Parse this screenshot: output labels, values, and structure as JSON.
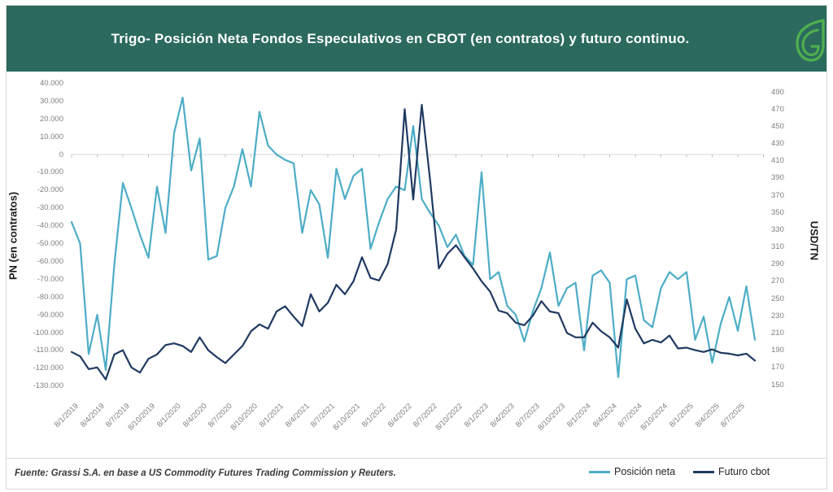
{
  "header": {
    "title": "Trigo- Posición Neta Fondos Especulativos en CBOT (en contratos) y futuro continuo.",
    "background_color": "#2b6a5d",
    "logo_icon": "leaf-g-icon",
    "logo_color": "#4fae50"
  },
  "footer": {
    "source": "Fuente: Grassi S.A. en base a US Commodity  Futures Trading Commission y Reuters."
  },
  "legend": [
    {
      "label": "Posición neta",
      "color": "#4dadc6"
    },
    {
      "label": "Futuro cbot",
      "color": "#203a61"
    }
  ],
  "chart_data": {
    "type": "line",
    "title": "Trigo- Posición Neta Fondos Especulativos en CBOT (en contratos) y futuro continuo.",
    "frequency": "monthly",
    "start_month": "2019-01",
    "end_month": "2025-09",
    "grid": "single horizontal line at left-axis 0 with quarterly tick marks",
    "legend_position": "bottom-right",
    "x_tick_labels": [
      "8/1/2019",
      "8/4/2019",
      "8/7/2019",
      "8/10/2019",
      "8/1/2020",
      "8/4/2020",
      "8/7/2020",
      "8/10/2020",
      "8/1/2021",
      "8/4/2021",
      "8/7/2021",
      "8/10/2021",
      "8/1/2022",
      "8/4/2022",
      "8/7/2022",
      "8/10/2022",
      "8/1/2023",
      "8/4/2023",
      "8/7/2023",
      "8/10/2023",
      "8/1/2024",
      "8/4/2024",
      "8/7/2024",
      "8/10/2024",
      "8/1/2025",
      "8/4/2025",
      "8/7/2025"
    ],
    "left_axis": {
      "label": "PN  (en contratos)",
      "min": -130000,
      "max": 40000,
      "tick_step": 10000,
      "tick_labels": [
        "40.000",
        "30.000",
        "20.000",
        "10.000",
        "0",
        "-10.000",
        "-20.000",
        "-30.000",
        "-40.000",
        "-50.000",
        "-60.000",
        "-70.000",
        "-80.000",
        "-90.000",
        "-100.000",
        "-110.000",
        "-120.000",
        "-130.000"
      ]
    },
    "right_axis": {
      "label": "USD/TN",
      "min": 150,
      "max": 490,
      "tick_step": 20,
      "tick_labels": [
        "490",
        "470",
        "450",
        "430",
        "410",
        "390",
        "370",
        "350",
        "330",
        "310",
        "290",
        "270",
        "250",
        "230",
        "210",
        "190",
        "170",
        "150"
      ]
    },
    "series": [
      {
        "name": "Posición neta",
        "axis": "left",
        "color": "#4dadc6",
        "values": [
          -38000,
          -50000,
          -112000,
          -90000,
          -121000,
          -62000,
          -16000,
          -30000,
          -45000,
          -58000,
          -18000,
          -44000,
          12000,
          32000,
          -9000,
          9000,
          -59000,
          -57000,
          -30000,
          -18000,
          3000,
          -18000,
          24000,
          5000,
          0,
          -3000,
          -5000,
          -44000,
          -20000,
          -28000,
          -58000,
          -8000,
          -25000,
          -12000,
          -8000,
          -53000,
          -38000,
          -25000,
          -18000,
          -20000,
          16000,
          -25000,
          -33000,
          -40000,
          -52000,
          -45000,
          -57000,
          -62000,
          -10000,
          -70000,
          -66000,
          -85000,
          -90000,
          -105000,
          -88000,
          -75000,
          -55000,
          -85000,
          -75000,
          -72000,
          -110000,
          -68000,
          -65000,
          -72000,
          -125000,
          -70000,
          -68000,
          -93000,
          -97000,
          -75000,
          -66000,
          -70000,
          -66000,
          -104000,
          -91000,
          -117000,
          -95000,
          -80000,
          -99000,
          -74000,
          -104000
        ]
      },
      {
        "name": "Futuro cbot",
        "axis": "right",
        "color": "#203a61",
        "values": [
          188,
          183,
          168,
          170,
          156,
          185,
          190,
          170,
          164,
          180,
          185,
          196,
          198,
          195,
          188,
          205,
          190,
          182,
          175,
          185,
          195,
          212,
          220,
          215,
          235,
          241,
          229,
          218,
          255,
          235,
          245,
          266,
          255,
          270,
          298,
          274,
          271,
          290,
          330,
          470,
          365,
          475,
          385,
          285,
          302,
          312,
          298,
          285,
          270,
          258,
          236,
          233,
          222,
          219,
          230,
          247,
          235,
          233,
          210,
          205,
          205,
          222,
          212,
          205,
          193,
          249,
          215,
          198,
          202,
          199,
          207,
          192,
          193,
          190,
          188,
          191,
          187,
          186,
          184,
          186,
          178
        ]
      }
    ]
  }
}
